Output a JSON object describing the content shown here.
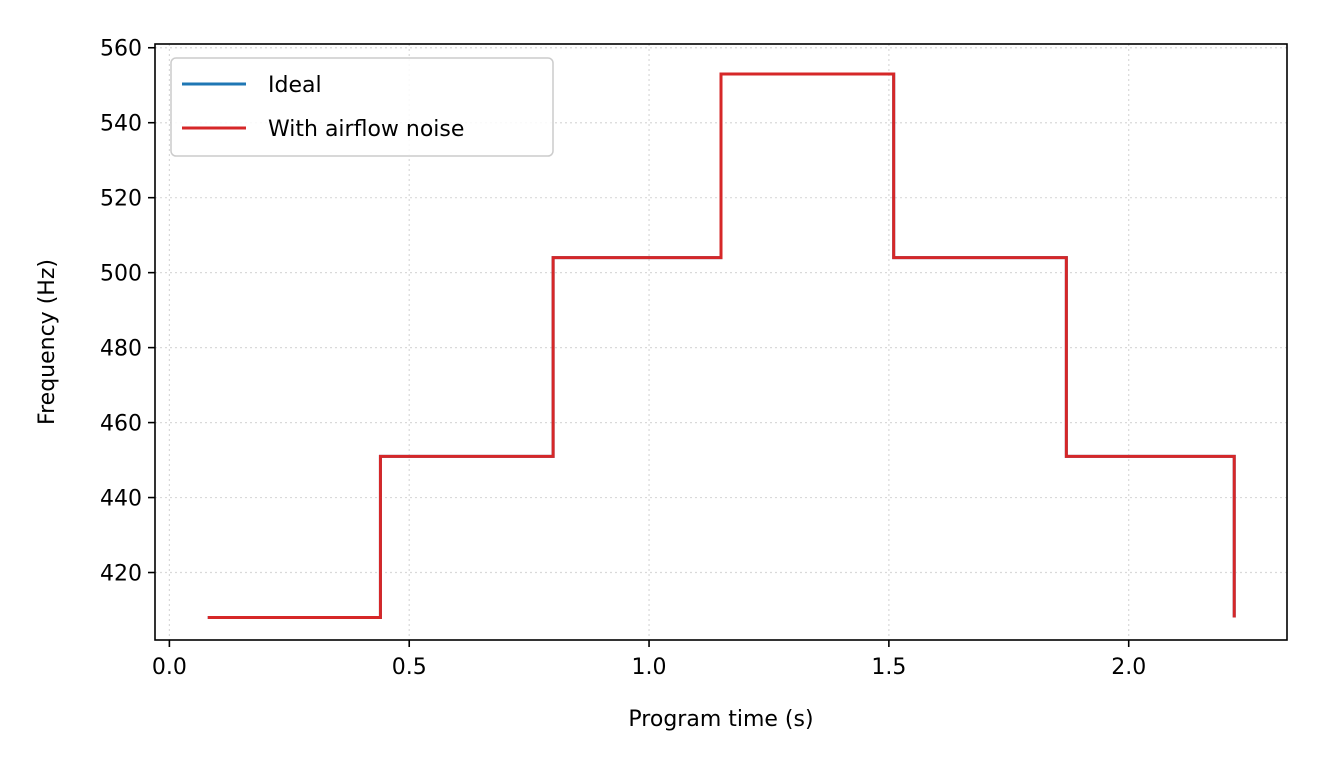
{
  "chart_data": {
    "type": "line",
    "step": "post",
    "xlabel": "Program time (s)",
    "ylabel": "Frequency (Hz)",
    "xlim": [
      -0.03,
      2.33
    ],
    "ylim": [
      402,
      561
    ],
    "xticks": [
      0.0,
      0.5,
      1.0,
      1.5,
      2.0
    ],
    "xtick_labels": [
      "0.0",
      "0.5",
      "1.0",
      "1.5",
      "2.0"
    ],
    "yticks": [
      420,
      440,
      460,
      480,
      500,
      520,
      540,
      560
    ],
    "ytick_labels": [
      "420",
      "440",
      "460",
      "480",
      "500",
      "520",
      "540",
      "560"
    ],
    "grid": true,
    "legend_position": "top-left",
    "series": [
      {
        "name": "Ideal",
        "color": "#1f77b4",
        "x": [
          0.08,
          0.44,
          0.8,
          1.15,
          1.51,
          1.87,
          2.22,
          2.22
        ],
        "y": [
          408,
          451,
          504,
          553,
          504,
          451,
          451,
          408
        ]
      },
      {
        "name": "With airflow noise",
        "color": "#d62728",
        "x": [
          0.08,
          0.44,
          0.8,
          1.15,
          1.51,
          1.87,
          2.22,
          2.22
        ],
        "y": [
          408,
          451,
          504,
          553,
          504,
          451,
          451,
          408
        ]
      }
    ]
  }
}
